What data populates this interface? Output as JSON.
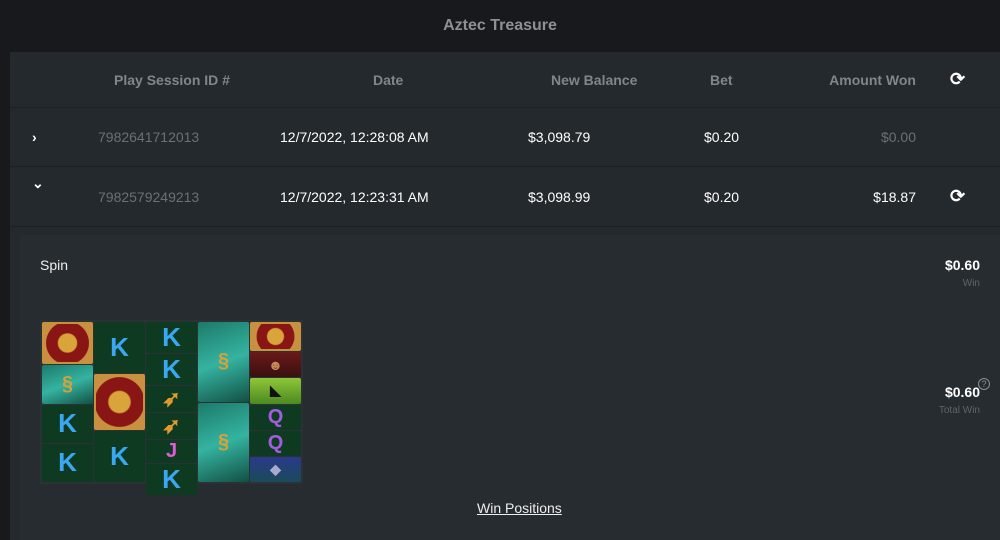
{
  "title": "Aztec Treasure",
  "table": {
    "headers": {
      "id": "Play Session ID #",
      "date": "Date",
      "balance": "New Balance",
      "bet": "Bet",
      "won": "Amount Won"
    },
    "rows": [
      {
        "id": "7982641712013",
        "date": "12/7/2022, 12:28:08 AM",
        "balance": "$3,098.79",
        "bet": "$0.20",
        "won": "$0.00",
        "expanded": false
      },
      {
        "id": "7982579249213",
        "date": "12/7/2022, 12:23:31 AM",
        "balance": "$3,098.99",
        "bet": "$0.20",
        "won": "$18.87",
        "expanded": true
      }
    ]
  },
  "icons": {
    "refresh": "⟳",
    "expand": "›",
    "collapse": "⌄",
    "help": "?"
  },
  "detail": {
    "label": "Spin",
    "win": "$0.60",
    "win_label": "Win",
    "total_win": "$0.60",
    "total_win_label": "Total Win",
    "win_positions": "Win Positions",
    "reels": [
      [
        "medallion",
        "snake",
        "K",
        "K"
      ],
      [
        "K",
        "medallion",
        "K"
      ],
      [
        "K",
        "K",
        "boomerang",
        "boomerang",
        "J",
        "K"
      ],
      [
        "snake",
        "snake"
      ],
      [
        "medallion",
        "explorer",
        "toucan",
        "Q",
        "Q",
        "panther"
      ]
    ]
  }
}
